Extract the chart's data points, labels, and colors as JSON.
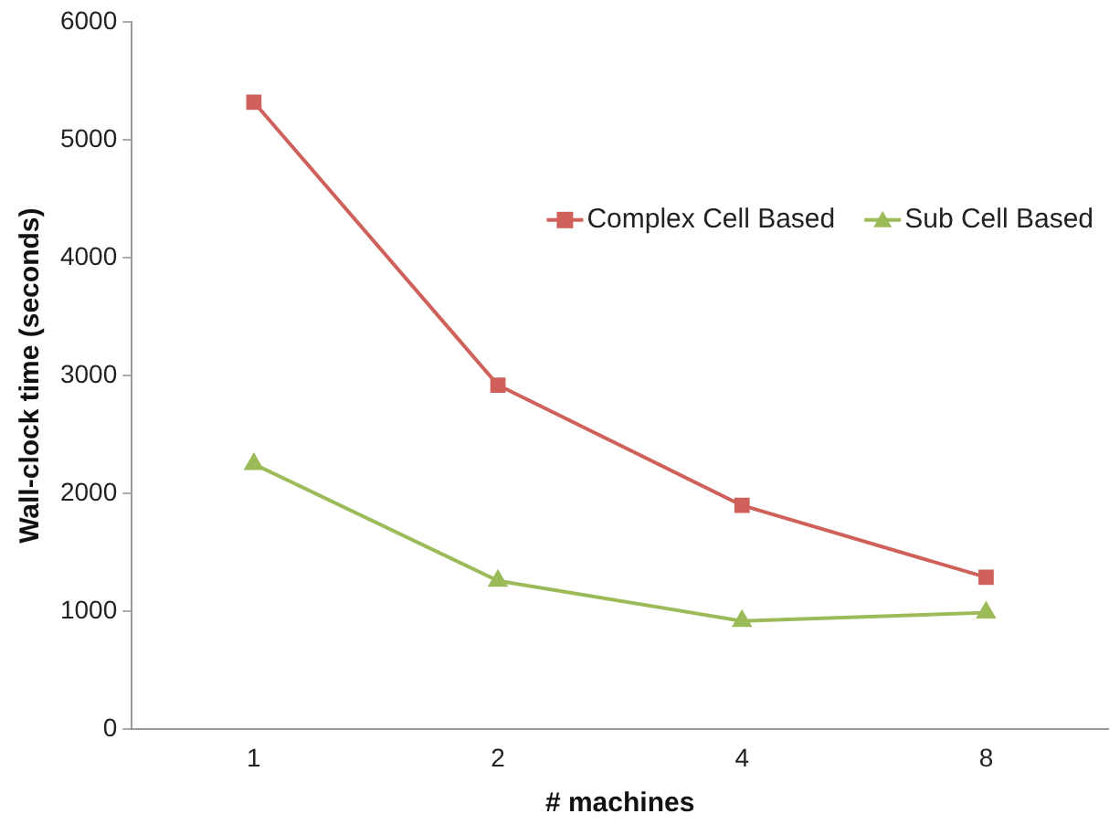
{
  "chart_data": {
    "type": "line",
    "xlabel": "# machines",
    "ylabel": "Wall-clock time (seconds)",
    "categories": [
      "1",
      "2",
      "4",
      "8"
    ],
    "series": [
      {
        "name": "Complex Cell Based",
        "color": "#d0605a",
        "marker": "square",
        "values": [
          5320,
          2920,
          1900,
          1290
        ]
      },
      {
        "name": "Sub Cell Based",
        "color": "#9bbb59",
        "marker": "triangle",
        "values": [
          2250,
          1260,
          920,
          990
        ]
      }
    ],
    "ylim": [
      0,
      6000
    ],
    "yticks": [
      0,
      1000,
      2000,
      3000,
      4000,
      5000,
      6000
    ],
    "grid": false,
    "legend": "right",
    "line_style": "solid"
  }
}
